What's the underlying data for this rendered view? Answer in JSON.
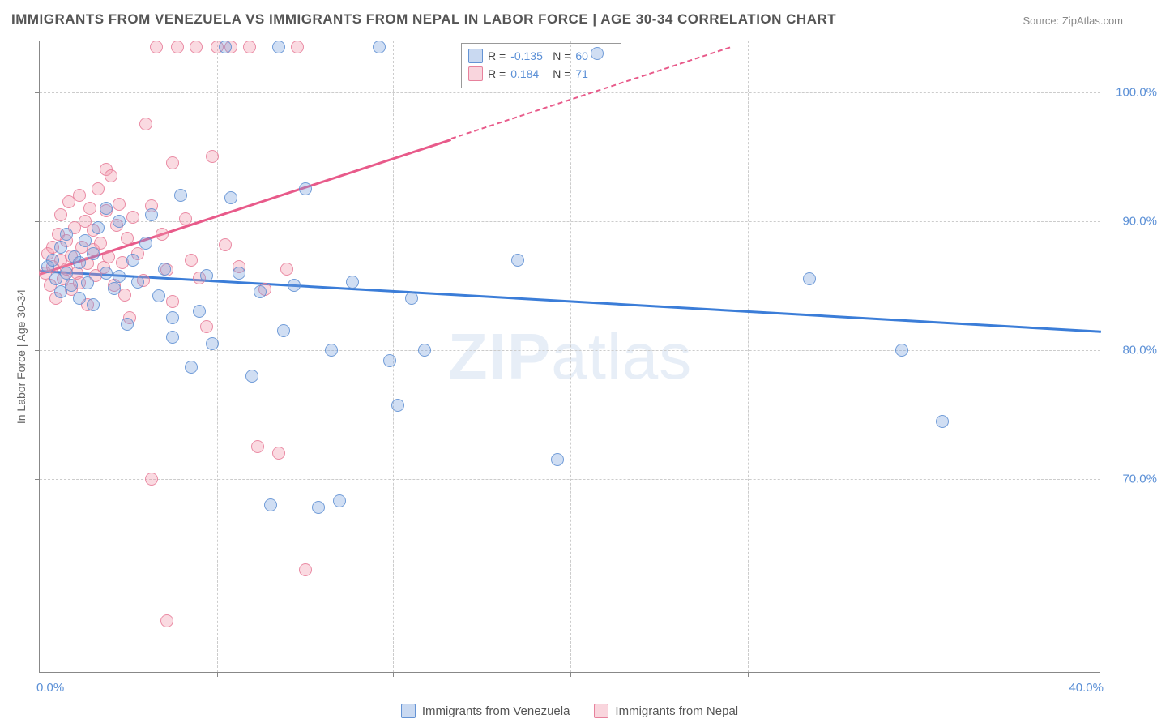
{
  "title": "IMMIGRANTS FROM VENEZUELA VS IMMIGRANTS FROM NEPAL IN LABOR FORCE | AGE 30-34 CORRELATION CHART",
  "source": "Source: ZipAtlas.com",
  "ylabel": "In Labor Force | Age 30-34",
  "watermark_a": "ZIP",
  "watermark_b": "atlas",
  "chart": {
    "type": "scatter",
    "background_color": "#ffffff",
    "grid_color": "#cccccc",
    "axis_color": "#888888",
    "label_color": "#666666",
    "tick_color": "#5a8fd6",
    "title_fontsize": 17,
    "label_fontsize": 14,
    "tick_fontsize": 15,
    "xlim": [
      0,
      40
    ],
    "ylim": [
      55,
      104
    ],
    "ytick_vals": [
      70,
      80,
      90,
      100
    ],
    "ytick_labels": [
      "70.0%",
      "80.0%",
      "90.0%",
      "100.0%"
    ],
    "xtick_vals": [
      0,
      40
    ],
    "xtick_labels": [
      "0.0%",
      "40.0%"
    ],
    "xgrid_vals": [
      6.7,
      13.3,
      20,
      26.7,
      33.3
    ],
    "marker_size": 16,
    "series": [
      {
        "name": "Immigrants from Venezuela",
        "color_fill": "rgba(120,160,220,0.35)",
        "color_stroke": "rgba(90,140,210,0.8)",
        "trend_color": "#3b7dd8",
        "R": "-0.135",
        "N": "60",
        "trend": {
          "x1": 0,
          "y1": 86.2,
          "x2": 40,
          "y2": 81.5,
          "dash_from_x": 40
        },
        "points": [
          [
            0.3,
            86.5
          ],
          [
            0.5,
            87.0
          ],
          [
            0.6,
            85.5
          ],
          [
            0.8,
            88.0
          ],
          [
            0.8,
            84.5
          ],
          [
            1.0,
            86.0
          ],
          [
            1.0,
            89.0
          ],
          [
            1.2,
            85.0
          ],
          [
            1.3,
            87.2
          ],
          [
            1.5,
            84.0
          ],
          [
            1.5,
            86.8
          ],
          [
            1.7,
            88.5
          ],
          [
            1.8,
            85.2
          ],
          [
            2.0,
            87.5
          ],
          [
            2.0,
            83.5
          ],
          [
            2.2,
            89.5
          ],
          [
            2.5,
            86.0
          ],
          [
            2.5,
            91.0
          ],
          [
            2.8,
            84.8
          ],
          [
            3.0,
            90.0
          ],
          [
            3.0,
            85.7
          ],
          [
            3.3,
            82.0
          ],
          [
            3.5,
            87.0
          ],
          [
            3.7,
            85.3
          ],
          [
            4.0,
            88.3
          ],
          [
            4.2,
            90.5
          ],
          [
            4.5,
            84.2
          ],
          [
            4.7,
            86.3
          ],
          [
            5.0,
            82.5
          ],
          [
            5.0,
            81.0
          ],
          [
            5.3,
            92.0
          ],
          [
            5.7,
            78.7
          ],
          [
            6.0,
            83.0
          ],
          [
            6.3,
            85.8
          ],
          [
            6.5,
            80.5
          ],
          [
            7.0,
            103.5
          ],
          [
            7.2,
            91.8
          ],
          [
            7.5,
            86.0
          ],
          [
            8.0,
            78.0
          ],
          [
            8.3,
            84.5
          ],
          [
            8.7,
            68.0
          ],
          [
            9.0,
            103.5
          ],
          [
            9.2,
            81.5
          ],
          [
            9.6,
            85.0
          ],
          [
            10.0,
            92.5
          ],
          [
            10.5,
            67.8
          ],
          [
            11.0,
            80.0
          ],
          [
            11.3,
            68.3
          ],
          [
            11.8,
            85.3
          ],
          [
            12.8,
            103.5
          ],
          [
            13.2,
            79.2
          ],
          [
            13.5,
            75.7
          ],
          [
            14.0,
            84.0
          ],
          [
            14.5,
            80.0
          ],
          [
            18.0,
            87.0
          ],
          [
            19.5,
            71.5
          ],
          [
            21.0,
            103.0
          ],
          [
            29.0,
            85.5
          ],
          [
            32.5,
            80.0
          ],
          [
            34.0,
            74.5
          ]
        ]
      },
      {
        "name": "Immigrants from Nepal",
        "color_fill": "rgba(240,150,170,0.35)",
        "color_stroke": "rgba(230,120,150,0.8)",
        "trend_color": "#e85a8a",
        "R": "0.184",
        "N": "71",
        "trend": {
          "x1": 0,
          "y1": 86.0,
          "x2": 26,
          "y2": 103.5,
          "dash_from_x": 15.5
        },
        "points": [
          [
            0.2,
            86.0
          ],
          [
            0.3,
            87.5
          ],
          [
            0.4,
            85.0
          ],
          [
            0.5,
            88.0
          ],
          [
            0.5,
            86.5
          ],
          [
            0.6,
            84.0
          ],
          [
            0.7,
            89.0
          ],
          [
            0.8,
            87.0
          ],
          [
            0.8,
            90.5
          ],
          [
            0.9,
            85.5
          ],
          [
            1.0,
            88.5
          ],
          [
            1.0,
            86.3
          ],
          [
            1.1,
            91.5
          ],
          [
            1.2,
            84.7
          ],
          [
            1.2,
            87.3
          ],
          [
            1.3,
            89.5
          ],
          [
            1.4,
            86.0
          ],
          [
            1.5,
            92.0
          ],
          [
            1.5,
            85.2
          ],
          [
            1.6,
            88.0
          ],
          [
            1.7,
            90.0
          ],
          [
            1.8,
            86.7
          ],
          [
            1.8,
            83.5
          ],
          [
            1.9,
            91.0
          ],
          [
            2.0,
            87.8
          ],
          [
            2.0,
            89.3
          ],
          [
            2.1,
            85.8
          ],
          [
            2.2,
            92.5
          ],
          [
            2.3,
            88.3
          ],
          [
            2.4,
            86.4
          ],
          [
            2.5,
            90.8
          ],
          [
            2.5,
            94.0
          ],
          [
            2.6,
            87.2
          ],
          [
            2.7,
            93.5
          ],
          [
            2.8,
            85.0
          ],
          [
            2.9,
            89.7
          ],
          [
            3.0,
            91.3
          ],
          [
            3.1,
            86.8
          ],
          [
            3.2,
            84.3
          ],
          [
            3.3,
            88.7
          ],
          [
            3.4,
            82.5
          ],
          [
            3.5,
            90.3
          ],
          [
            3.7,
            87.5
          ],
          [
            3.9,
            85.4
          ],
          [
            4.0,
            97.5
          ],
          [
            4.2,
            91.2
          ],
          [
            4.2,
            70.0
          ],
          [
            4.4,
            103.5
          ],
          [
            4.6,
            89.0
          ],
          [
            4.8,
            86.2
          ],
          [
            4.8,
            59.0
          ],
          [
            5.0,
            94.5
          ],
          [
            5.0,
            83.8
          ],
          [
            5.2,
            103.5
          ],
          [
            5.5,
            90.2
          ],
          [
            5.7,
            87.0
          ],
          [
            5.9,
            103.5
          ],
          [
            6.0,
            85.6
          ],
          [
            6.3,
            81.8
          ],
          [
            6.5,
            95.0
          ],
          [
            6.7,
            103.5
          ],
          [
            7.0,
            88.2
          ],
          [
            7.2,
            103.5
          ],
          [
            7.5,
            86.5
          ],
          [
            7.9,
            103.5
          ],
          [
            8.2,
            72.5
          ],
          [
            8.5,
            84.7
          ],
          [
            9.0,
            72.0
          ],
          [
            9.3,
            86.3
          ],
          [
            9.7,
            103.5
          ],
          [
            10.0,
            63.0
          ]
        ]
      }
    ]
  },
  "legend": {
    "r_label": "R =",
    "n_label": "N ="
  }
}
